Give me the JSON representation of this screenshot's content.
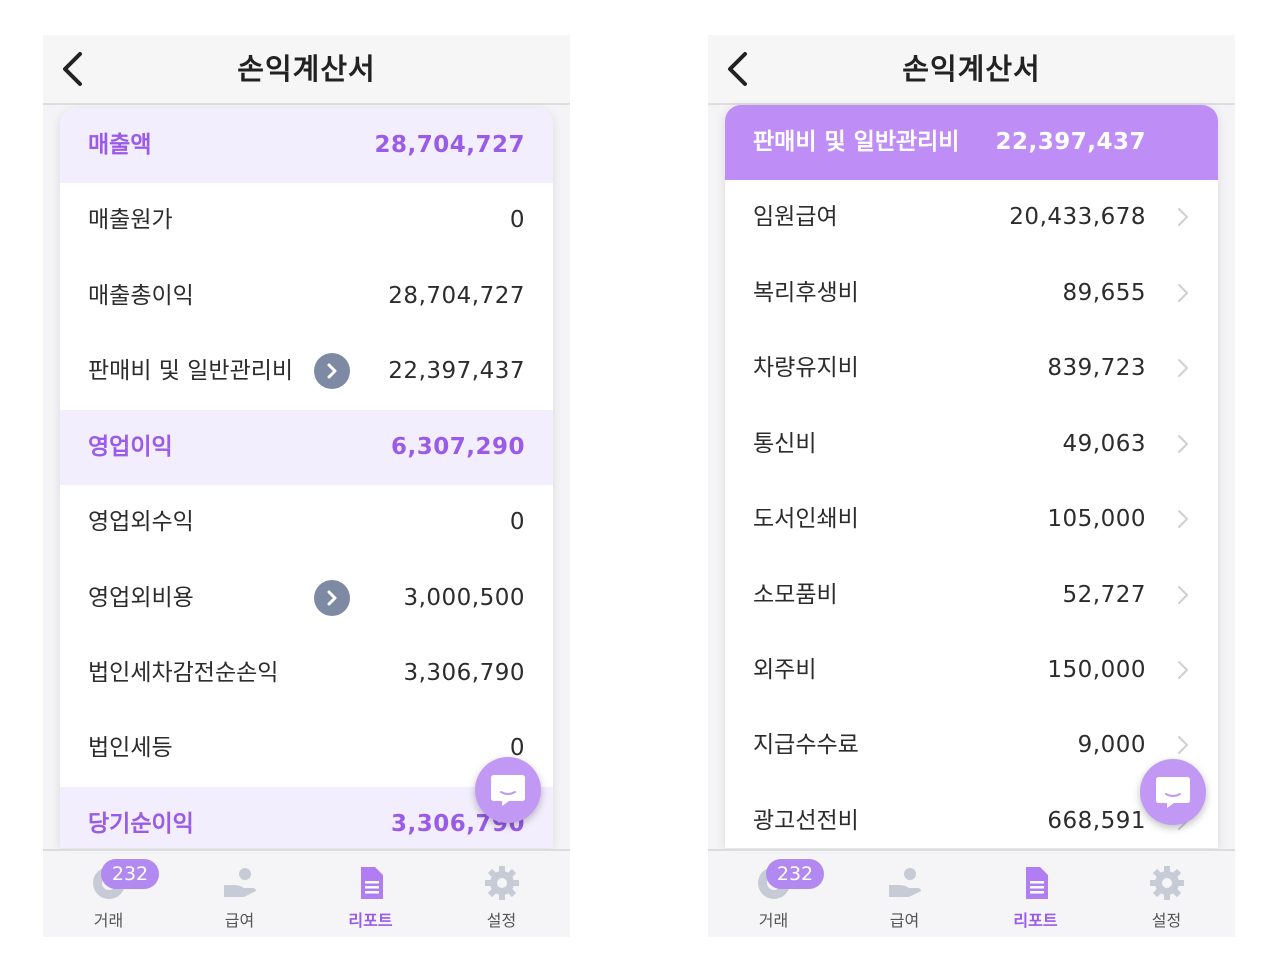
{
  "left": {
    "title": "손익계산서",
    "rows": [
      {
        "label": "매출액",
        "value": "28,704,727"
      },
      {
        "label": "매출원가",
        "value": "0"
      },
      {
        "label": "매출총이익",
        "value": "28,704,727"
      },
      {
        "label": "판매비 및 일반관리비",
        "value": "22,397,437"
      },
      {
        "label": "영업이익",
        "value": "6,307,290"
      },
      {
        "label": "영업외수익",
        "value": "0"
      },
      {
        "label": "영업외비용",
        "value": "3,000,500"
      },
      {
        "label": "법인세차감전순손익",
        "value": "3,306,790"
      },
      {
        "label": "법인세등",
        "value": "0"
      },
      {
        "label": "당기순이익",
        "value": "3,306,790"
      }
    ]
  },
  "right": {
    "title": "손익계산서",
    "header_row": {
      "label": "판매비 및 일반관리비",
      "value": "22,397,437"
    },
    "rows": [
      {
        "label": "임원급여",
        "value": "20,433,678"
      },
      {
        "label": "복리후생비",
        "value": "89,655"
      },
      {
        "label": "차량유지비",
        "value": "839,723"
      },
      {
        "label": "통신비",
        "value": "49,063"
      },
      {
        "label": "도서인쇄비",
        "value": "105,000"
      },
      {
        "label": "소모품비",
        "value": "52,727"
      },
      {
        "label": "외주비",
        "value": "150,000"
      },
      {
        "label": "지급수수료",
        "value": "9,000"
      },
      {
        "label": "광고선전비",
        "value": "668,591"
      }
    ]
  },
  "tabbar": {
    "badge": "232",
    "tabs": [
      {
        "label": "거래",
        "icon": "globe-icon"
      },
      {
        "label": "급여",
        "icon": "hand-coin-icon"
      },
      {
        "label": "리포트",
        "icon": "document-icon"
      },
      {
        "label": "설정",
        "icon": "gear-icon"
      }
    ]
  },
  "colors": {
    "accent": "#9a5ce8",
    "highlight_bg": "#f3eefd",
    "header_row_bg": "#bf8df6",
    "fab": "#c199f5",
    "circle_button": "#7e8aa3"
  }
}
